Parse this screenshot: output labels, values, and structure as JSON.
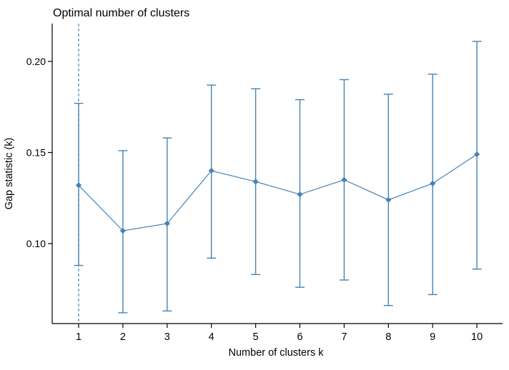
{
  "page": {
    "background": "#ffffff"
  },
  "chart_data": {
    "type": "line",
    "title": "Optimal number of clusters",
    "xlabel": "Number of clusters k",
    "ylabel": "Gap statistic (k)",
    "x": [
      1,
      2,
      3,
      4,
      5,
      6,
      7,
      8,
      9,
      10
    ],
    "series": [
      {
        "name": "Gap statistic",
        "values": [
          0.132,
          0.107,
          0.111,
          0.14,
          0.134,
          0.127,
          0.135,
          0.124,
          0.133,
          0.149
        ],
        "error_low": [
          0.088,
          0.062,
          0.063,
          0.092,
          0.083,
          0.076,
          0.08,
          0.066,
          0.072,
          0.086
        ],
        "error_high": [
          0.177,
          0.151,
          0.158,
          0.187,
          0.185,
          0.179,
          0.19,
          0.182,
          0.193,
          0.211
        ]
      }
    ],
    "y_ticks": [
      0.1,
      0.15,
      0.2
    ],
    "y_tick_labels": [
      "0.10",
      "0.15",
      "0.20"
    ],
    "x_tick_labels": [
      "1",
      "2",
      "3",
      "4",
      "5",
      "6",
      "7",
      "8",
      "9",
      "10"
    ],
    "ylim": [
      0.056,
      0.215
    ],
    "xlim": [
      0.4,
      10.6
    ],
    "vline": {
      "x": 1,
      "style": "dashed"
    },
    "colors": {
      "series": "#4682B4",
      "axis": "#000000",
      "text": "#000000"
    },
    "grid": false,
    "legend": "none",
    "marker": "diamond",
    "error_bars": true
  }
}
